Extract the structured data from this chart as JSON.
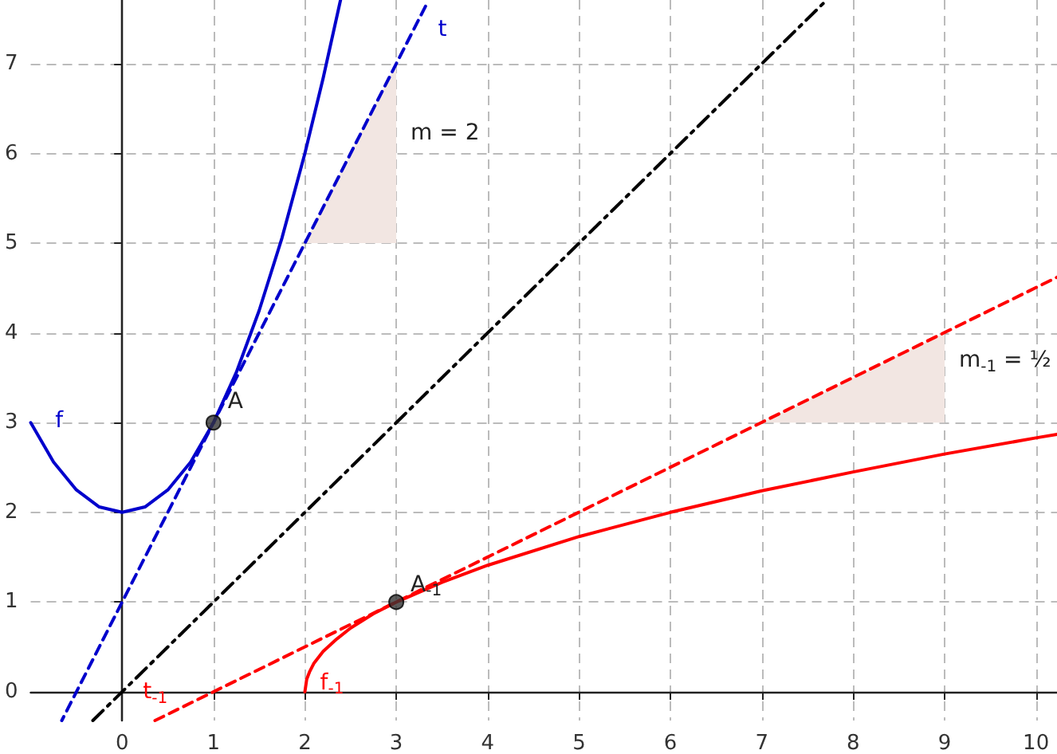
{
  "chart_data": {
    "type": "line",
    "xlim": [
      -1.0,
      10.23
    ],
    "ylim": [
      -0.32,
      7.71
    ],
    "xticks": [
      0,
      1,
      2,
      3,
      4,
      5,
      6,
      7,
      8,
      9,
      10
    ],
    "yticks": [
      0,
      1,
      2,
      3,
      4,
      5,
      6,
      7
    ],
    "grid": true,
    "marker": "none",
    "series": [
      {
        "type": "area",
        "color": "#f2e6e2",
        "x": [
          2,
          3
        ],
        "values": [
          5,
          7
        ]
      },
      {
        "type": "area",
        "color": "#f2e6e2",
        "x": [
          7,
          9
        ],
        "values": [
          3,
          4
        ]
      },
      {
        "name": "f",
        "color": "#0000cc",
        "line_style": "solid",
        "x": [
          -1.0,
          -0.75,
          -0.5,
          -0.25,
          0,
          0.25,
          0.5,
          0.75,
          1,
          1.25,
          1.5,
          1.75,
          2,
          2.2,
          2.39
        ],
        "values": [
          3,
          2.56,
          2.25,
          2.06,
          2,
          2.06,
          2.25,
          2.56,
          3,
          3.56,
          4.25,
          5.06,
          6,
          6.84,
          7.71
        ]
      },
      {
        "name": "t",
        "color": "#0000cc",
        "line_style": "dashed",
        "x": [
          3.32,
          -0.66
        ],
        "values": [
          7.64,
          -0.32
        ]
      },
      {
        "color": "#000000",
        "line_style": "dashdot",
        "x": [
          -0.32,
          7.71
        ],
        "values": [
          -0.32,
          7.71
        ]
      },
      {
        "name": "t$_{-1}$",
        "color": "#ff0000",
        "line_style": "dashed",
        "x": [
          0.36,
          10.23
        ],
        "values": [
          -0.32,
          4.62
        ]
      },
      {
        "name": "f$_{-1}$",
        "color": "#ff0000",
        "line_style": "solid",
        "x": [
          2,
          2.02,
          2.05,
          2.1,
          2.2,
          2.35,
          2.5,
          2.75,
          3,
          3.5,
          4,
          5,
          6,
          7,
          8,
          9,
          10,
          10.23
        ],
        "values": [
          0,
          0.14,
          0.22,
          0.32,
          0.45,
          0.59,
          0.71,
          0.87,
          1,
          1.22,
          1.41,
          1.73,
          2,
          2.24,
          2.45,
          2.65,
          2.83,
          2.87
        ]
      },
      {
        "type": "scatter",
        "marker": "circle",
        "color": "#333333",
        "x": [
          1
        ],
        "values": [
          3
        ]
      },
      {
        "type": "scatter",
        "marker": "circle",
        "color": "#333333",
        "x": [
          3
        ],
        "values": [
          1
        ]
      }
    ],
    "annotations": [
      {
        "text": "A",
        "x": 1,
        "y": 3
      },
      {
        "text": "A$_{-1}$",
        "x": 3,
        "y": 1
      },
      {
        "text": "m = 2",
        "x": 3,
        "y": 6
      },
      {
        "text": "m$_{-1}$ = ½",
        "x": 9,
        "y": 3.5
      }
    ]
  }
}
